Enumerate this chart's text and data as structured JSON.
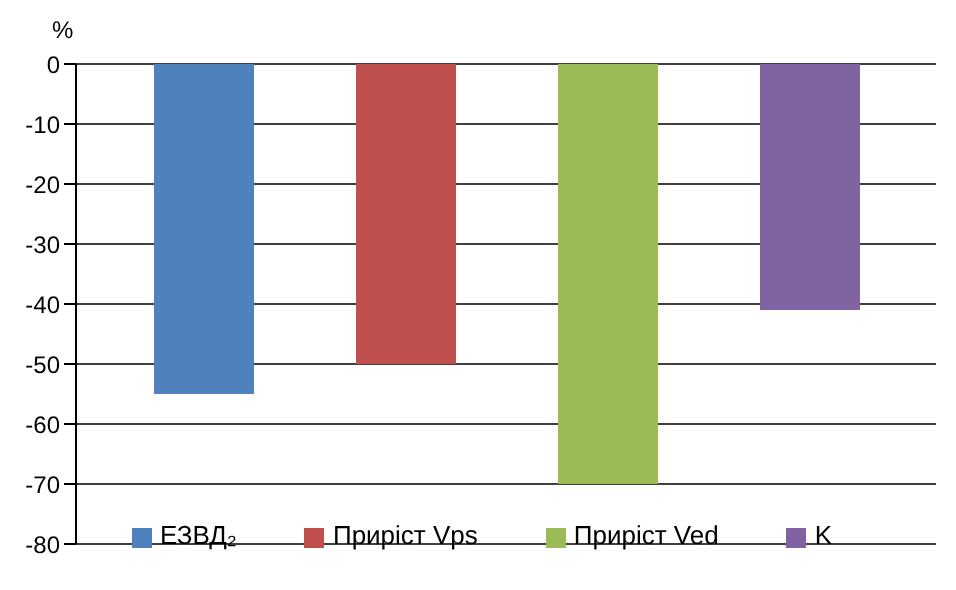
{
  "chart_data": {
    "type": "bar",
    "ylabel": "%",
    "categories": [
      null
    ],
    "series": [
      {
        "name": "ЕЗВД₂",
        "color": "#4f81bd",
        "values": [
          -55
        ]
      },
      {
        "name": "Приріст Vps",
        "color": "#c0504d",
        "values": [
          -50
        ]
      },
      {
        "name": "Приріст Ved",
        "color": "#9bbb59",
        "values": [
          -70
        ]
      },
      {
        "name": "K",
        "color": "#8064a2",
        "values": [
          -41
        ]
      }
    ],
    "ylim": [
      -80,
      0
    ],
    "yticks": [
      0,
      -10,
      -20,
      -30,
      -40,
      -50,
      -60,
      -70,
      -80
    ],
    "grid": "y",
    "legend": "bottom"
  }
}
